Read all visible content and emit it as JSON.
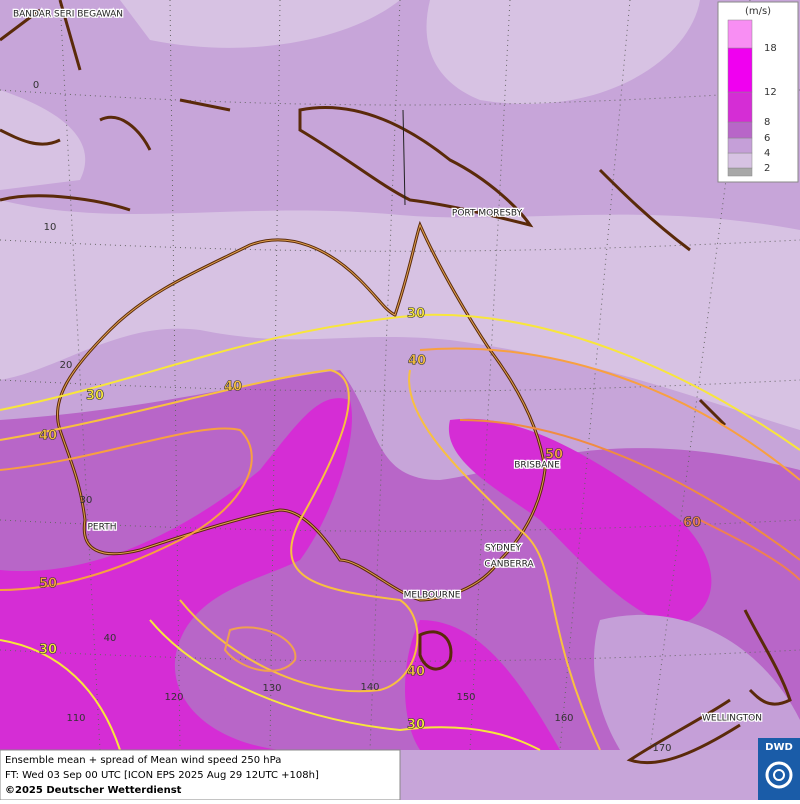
{
  "header": {
    "title": "Ensemble mean + spread of Mean wind speed 250 hPa"
  },
  "cities": [
    "BANDAR SERI BEGAWAN",
    "PORT MORESBY",
    "BRISBANE",
    "PERTH",
    "SYDNEY",
    "CANBERRA",
    "MELBOURNE",
    "WELLINGTON"
  ],
  "latitude_labels": [
    0,
    10,
    20,
    30,
    40
  ],
  "longitude_labels": [
    110,
    120,
    130,
    140,
    150,
    160,
    170
  ],
  "contour_labels": [
    30,
    40,
    30,
    40,
    40,
    50,
    60,
    50,
    30,
    40,
    30
  ],
  "legend": {
    "unit": "(m/s)",
    "levels": [
      2,
      4,
      6,
      8,
      12,
      18
    ],
    "colors": [
      "#a8a8a8",
      "#d7c2e3",
      "#c59fd8",
      "#b866c8",
      "#d52dd5",
      "#f000f0",
      "#f88ef3"
    ]
  },
  "footer": {
    "line1": "Ensemble mean + spread of Mean wind speed 250 hPa",
    "line2": "FT: Wed 03 Sep 00 UTC [ICON EPS 2025 Aug 29 12UTC +108h]",
    "line3": "©2025 Deutscher Wetterdienst"
  },
  "logo": "DWD"
}
